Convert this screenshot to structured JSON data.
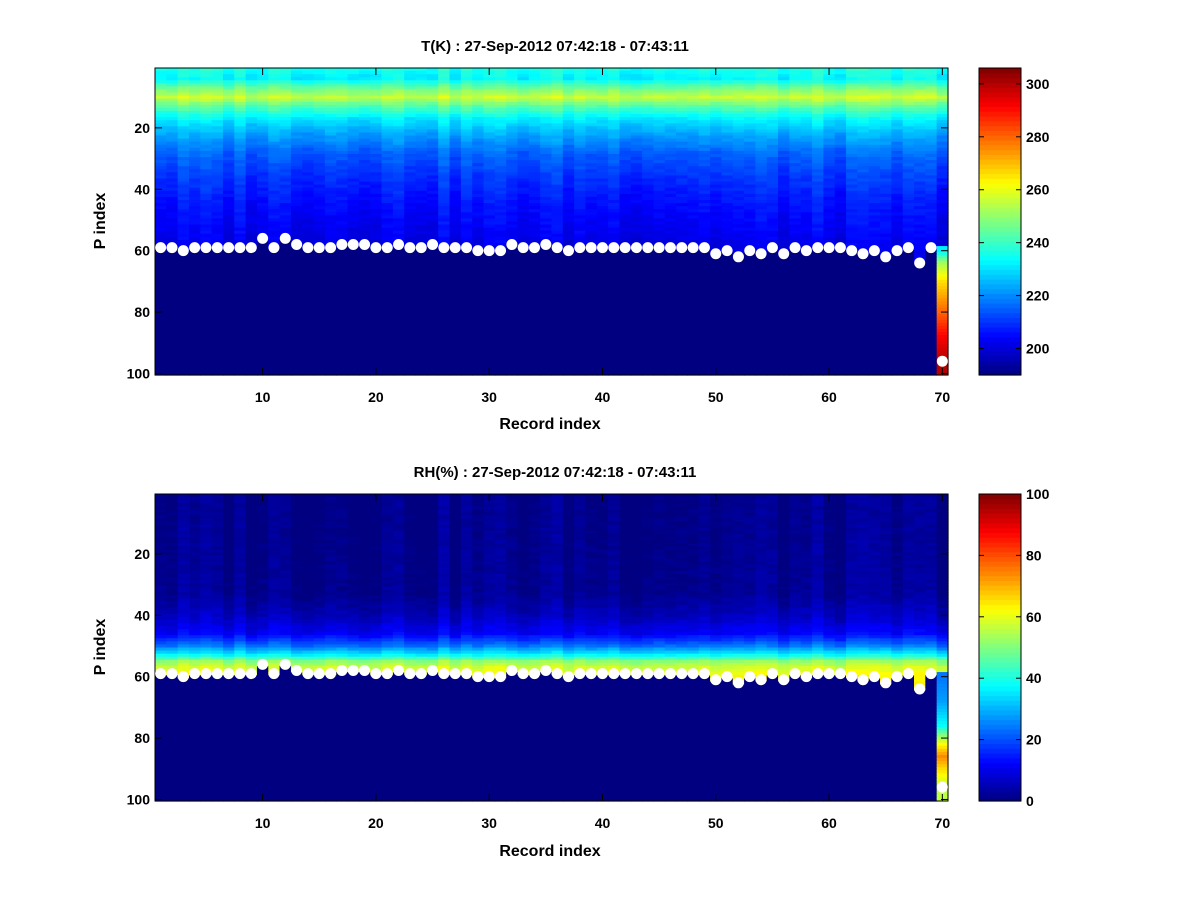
{
  "chart_data": [
    {
      "type": "heatmap",
      "title": "T(K) : 27-Sep-2012 07:42:18 - 07:43:11",
      "xlabel": "Record index",
      "ylabel": "P index",
      "xlim": [
        0.5,
        70.5
      ],
      "ylim": [
        0.5,
        100.5
      ],
      "y_reversed": true,
      "xticks": [
        10,
        20,
        30,
        40,
        50,
        60,
        70
      ],
      "yticks": [
        20,
        40,
        60,
        80,
        100
      ],
      "colormap": "jet",
      "clim": [
        190,
        306
      ],
      "colorbar_ticks": [
        200,
        220,
        240,
        260,
        280,
        300
      ],
      "below_surface_value": 190,
      "profile_model": [
        {
          "p": 1,
          "v": 236
        },
        {
          "p": 4,
          "v": 233
        },
        {
          "p": 7,
          "v": 246
        },
        {
          "p": 10,
          "v": 256
        },
        {
          "p": 13,
          "v": 244
        },
        {
          "p": 17,
          "v": 232
        },
        {
          "p": 22,
          "v": 224
        },
        {
          "p": 28,
          "v": 216
        },
        {
          "p": 35,
          "v": 211
        },
        {
          "p": 45,
          "v": 206
        },
        {
          "p": 55,
          "v": 203
        },
        {
          "p": 60,
          "v": 201
        }
      ],
      "last_record_profile": [
        {
          "p": 60,
          "v": 232
        },
        {
          "p": 64,
          "v": 252
        },
        {
          "p": 70,
          "v": 266
        },
        {
          "p": 80,
          "v": 280
        },
        {
          "p": 88,
          "v": 292
        },
        {
          "p": 96,
          "v": 300
        }
      ]
    },
    {
      "type": "heatmap",
      "title": "RH(%) : 27-Sep-2012 07:42:18 - 07:43:11",
      "xlabel": "Record index",
      "ylabel": "P index",
      "xlim": [
        0.5,
        70.5
      ],
      "ylim": [
        0.5,
        100.5
      ],
      "y_reversed": true,
      "xticks": [
        10,
        20,
        30,
        40,
        50,
        60,
        70
      ],
      "yticks": [
        20,
        40,
        60,
        80,
        100
      ],
      "colormap": "jet",
      "clim": [
        0,
        100
      ],
      "colorbar_ticks": [
        0,
        20,
        40,
        60,
        80,
        100
      ],
      "below_surface_value": 0,
      "profile_model": [
        {
          "p": 1,
          "v": 1
        },
        {
          "p": 33,
          "v": 2
        },
        {
          "p": 40,
          "v": 6
        },
        {
          "p": 46,
          "v": 12
        },
        {
          "p": 50,
          "v": 24
        },
        {
          "p": 53,
          "v": 38
        },
        {
          "p": 55,
          "v": 52
        },
        {
          "p": 57,
          "v": 58
        },
        {
          "p": 60,
          "v": 62
        }
      ],
      "last_record_profile": [
        {
          "p": 60,
          "v": 24
        },
        {
          "p": 68,
          "v": 28
        },
        {
          "p": 76,
          "v": 38
        },
        {
          "p": 82,
          "v": 62
        },
        {
          "p": 86,
          "v": 74
        },
        {
          "p": 90,
          "v": 66
        },
        {
          "p": 96,
          "v": 56
        }
      ]
    }
  ],
  "surface_points": {
    "x": [
      1,
      2,
      3,
      4,
      5,
      6,
      7,
      8,
      9,
      10,
      11,
      12,
      13,
      14,
      15,
      16,
      17,
      18,
      19,
      20,
      21,
      22,
      23,
      24,
      25,
      26,
      27,
      28,
      29,
      30,
      31,
      32,
      33,
      34,
      35,
      36,
      37,
      38,
      39,
      40,
      41,
      42,
      43,
      44,
      45,
      46,
      47,
      48,
      49,
      50,
      51,
      52,
      53,
      54,
      55,
      56,
      57,
      58,
      59,
      60,
      61,
      62,
      63,
      64,
      65,
      66,
      67,
      68,
      69,
      70
    ],
    "p": [
      59,
      59,
      60,
      59,
      59,
      59,
      59,
      59,
      59,
      56,
      59,
      56,
      58,
      59,
      59,
      59,
      58,
      58,
      58,
      59,
      59,
      58,
      59,
      59,
      58,
      59,
      59,
      59,
      60,
      60,
      60,
      58,
      59,
      59,
      58,
      59,
      60,
      59,
      59,
      59,
      59,
      59,
      59,
      59,
      59,
      59,
      59,
      59,
      59,
      61,
      60,
      62,
      60,
      61,
      59,
      61,
      59,
      60,
      59,
      59,
      59,
      60,
      61,
      60,
      62,
      60,
      59,
      64,
      59,
      96
    ]
  }
}
